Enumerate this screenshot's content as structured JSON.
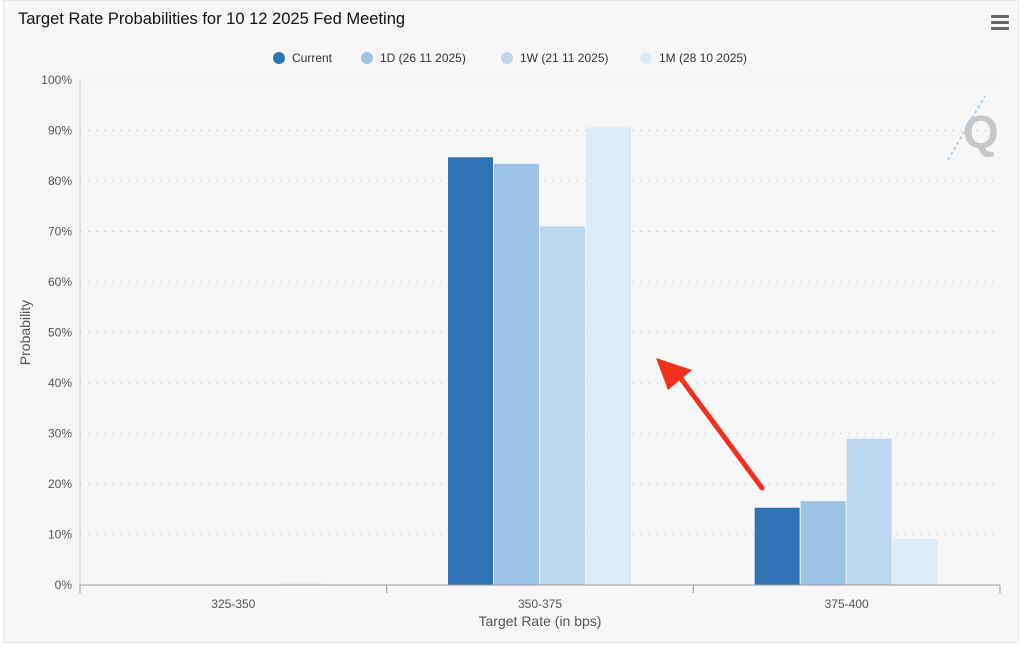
{
  "page": {
    "title": "Target Rate Probabilities for 10 12 2025 Fed Meeting",
    "menu_icon": "hamburger-menu-icon",
    "watermark_icon": "q-logo-icon",
    "annotation": "red-arrow-icon"
  },
  "colors": {
    "series": [
      "#2e74b5",
      "#9dc3e6",
      "#bdd7ee",
      "#ddebf7"
    ],
    "grid": "#d8d8d8",
    "arrow": "#f2311d",
    "text": "#555555"
  },
  "chart_data": {
    "type": "bar",
    "title": "Target Rate Probabilities for 10 12 2025 Fed Meeting",
    "xlabel": "Target Rate (in bps)",
    "ylabel": "Probability",
    "ylim": [
      0,
      100
    ],
    "yticks": [
      "0%",
      "10%",
      "20%",
      "30%",
      "40%",
      "50%",
      "60%",
      "70%",
      "80%",
      "90%",
      "100%"
    ],
    "categories": [
      "325-350",
      "350-375",
      "375-400"
    ],
    "series": [
      {
        "name": "Current",
        "values": [
          0,
          84.7,
          15.3
        ]
      },
      {
        "name": "1D (26 11 2025)",
        "values": [
          0,
          83.4,
          16.6
        ]
      },
      {
        "name": "1W (21 11 2025)",
        "values": [
          0,
          71.0,
          29.0
        ]
      },
      {
        "name": "1M (28 10 2025)",
        "values": [
          0.3,
          90.6,
          9.1
        ]
      }
    ],
    "legend": "top-center",
    "grid": true
  }
}
